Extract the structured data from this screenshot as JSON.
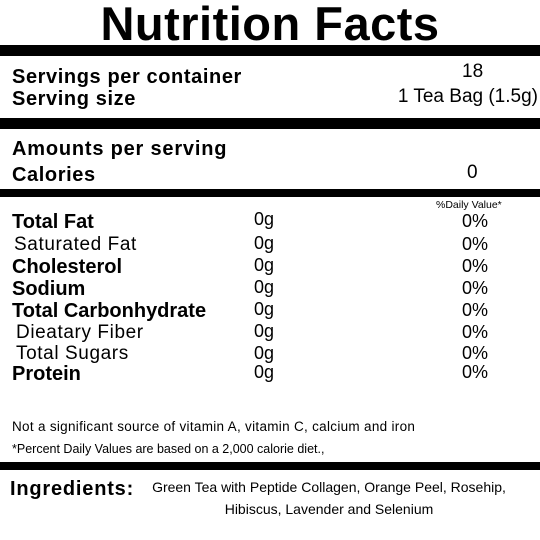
{
  "title": "Nutrition Facts",
  "servings": {
    "container_label": "Servings per container",
    "container_value": "18",
    "size_label": "Serving size",
    "size_value": "1 Tea Bag (1.5g)"
  },
  "amounts_label": "Amounts per serving",
  "calories": {
    "label": "Calories",
    "value": "0"
  },
  "daily_value_header": "%Daily Value*",
  "nutrients": [
    {
      "name": "Total Fat",
      "amount": "0g",
      "dv": "0%"
    },
    {
      "name": "Saturated Fat",
      "amount": "0g",
      "dv": "0%"
    },
    {
      "name": "Cholesterol",
      "amount": "0g",
      "dv": "0%"
    },
    {
      "name": "Sodium",
      "amount": "0g",
      "dv": "0%"
    },
    {
      "name": "Total Carbonhydrate",
      "amount": "0g",
      "dv": "0%"
    },
    {
      "name": "Dieatary Fiber",
      "amount": "0g",
      "dv": "0%"
    },
    {
      "name": "Total Sugars",
      "amount": "0g",
      "dv": "0%"
    },
    {
      "name": "Protein",
      "amount": "0g",
      "dv": "0%"
    }
  ],
  "notes": {
    "vitamins": "Not a significant source of vitamin A, vitamin C, calcium and iron",
    "daily_values": "*Percent Daily Values are based on a 2,000 calorie diet.,"
  },
  "ingredients": {
    "label": "Ingredients:",
    "text": "Green Tea with Peptide Collagen, Orange Peel, Rosehip, Hibiscus, Lavender and Selenium"
  }
}
